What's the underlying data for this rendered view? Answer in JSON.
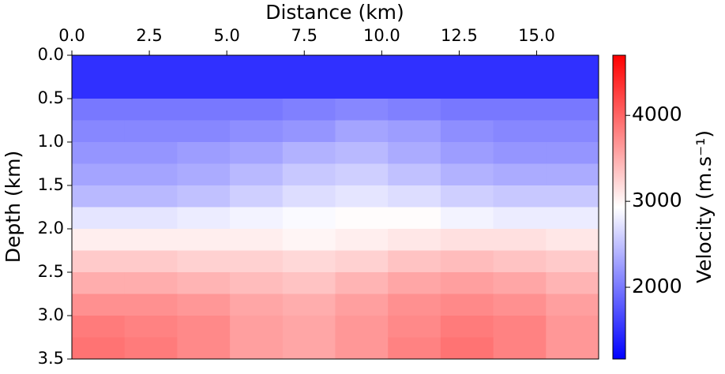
{
  "chart_data": {
    "type": "heatmap",
    "xlabel": "Distance (km)",
    "ylabel": "Depth (km)",
    "colorbar_label": "Velocity (m.s⁻¹)",
    "cmap": "bwr",
    "x": [
      0.85,
      2.55,
      4.25,
      5.95,
      7.65,
      9.35,
      11.05,
      12.75,
      14.45,
      16.15
    ],
    "y": [
      0.125,
      0.375,
      0.625,
      0.875,
      1.125,
      1.375,
      1.625,
      1.875,
      2.125,
      2.375,
      2.625,
      2.875,
      3.125,
      3.375
    ],
    "z": [
      [
        1500,
        1500,
        1500,
        1500,
        1500,
        1500,
        1500,
        1500,
        1500,
        1500
      ],
      [
        1500,
        1500,
        1500,
        1500,
        1500,
        1500,
        1500,
        1500,
        1500,
        1500
      ],
      [
        2000,
        2000,
        2000,
        2000,
        2050,
        2100,
        2050,
        2000,
        2000,
        2000
      ],
      [
        2100,
        2100,
        2100,
        2150,
        2200,
        2300,
        2250,
        2150,
        2100,
        2100
      ],
      [
        2200,
        2200,
        2250,
        2300,
        2400,
        2450,
        2350,
        2250,
        2200,
        2200
      ],
      [
        2300,
        2300,
        2350,
        2450,
        2550,
        2600,
        2500,
        2400,
        2350,
        2350
      ],
      [
        2450,
        2450,
        2500,
        2600,
        2700,
        2750,
        2700,
        2600,
        2550,
        2550
      ],
      [
        2750,
        2750,
        2800,
        2850,
        2900,
        2950,
        2950,
        2850,
        2800,
        2800
      ],
      [
        3050,
        3050,
        3050,
        3050,
        3000,
        3050,
        3100,
        3150,
        3150,
        3100
      ],
      [
        3300,
        3300,
        3250,
        3250,
        3200,
        3250,
        3350,
        3400,
        3350,
        3300
      ],
      [
        3500,
        3500,
        3450,
        3400,
        3350,
        3450,
        3550,
        3600,
        3550,
        3450
      ],
      [
        3700,
        3700,
        3650,
        3550,
        3500,
        3600,
        3700,
        3750,
        3700,
        3600
      ],
      [
        3850,
        3800,
        3750,
        3600,
        3550,
        3650,
        3750,
        3850,
        3800,
        3650
      ],
      [
        3900,
        3850,
        3750,
        3600,
        3550,
        3650,
        3800,
        3900,
        3800,
        3650
      ]
    ],
    "xlim": [
      0,
      17
    ],
    "xticks": [
      {
        "value": 0,
        "label": "0.0"
      },
      2.5,
      {
        "value": 5,
        "label": "5.0"
      },
      7.5,
      {
        "value": 10,
        "label": "10.0"
      },
      12.5,
      {
        "value": 15,
        "label": "15.0"
      }
    ],
    "ylim": [
      3.5,
      0
    ],
    "yticks": [
      {
        "value": 0,
        "label": "0.0"
      },
      0.5,
      {
        "value": 1,
        "label": "1.0"
      },
      1.5,
      {
        "value": 2,
        "label": "2.0"
      },
      2.5,
      {
        "value": 3,
        "label": "3.0"
      },
      3.5
    ],
    "clim": [
      1165,
      4700
    ],
    "cticks": [
      2000,
      3000,
      4000
    ]
  }
}
